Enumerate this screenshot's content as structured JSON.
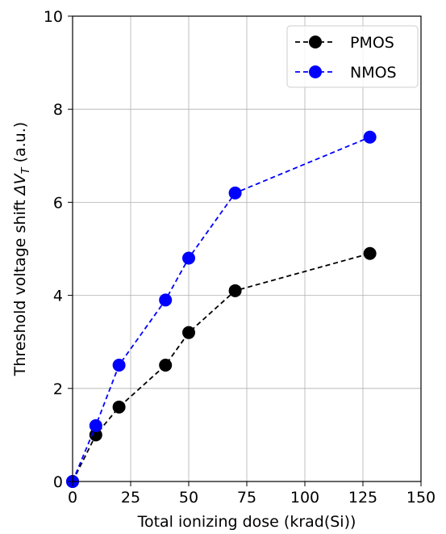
{
  "chart_data": {
    "type": "line",
    "xlabel": "Total ionizing dose (krad(Si))",
    "ylabel_prefix": "Threshold voltage shift ",
    "ylabel_symbol": "ΔV",
    "ylabel_subscript": "T",
    "ylabel_suffix": " (a.u.)",
    "xlim": [
      0,
      150
    ],
    "ylim": [
      0,
      10
    ],
    "xticks": [
      0,
      25,
      50,
      75,
      100,
      125,
      150
    ],
    "yticks": [
      0,
      2,
      4,
      6,
      8,
      10
    ],
    "grid": true,
    "legend_position": "top-right",
    "series": [
      {
        "name": "PMOS",
        "color": "#000000",
        "linestyle": "dashed",
        "marker": "circle",
        "x": [
          0,
          10,
          20,
          40,
          50,
          70,
          128
        ],
        "y": [
          0,
          1.0,
          1.6,
          2.5,
          3.2,
          4.1,
          4.9
        ]
      },
      {
        "name": "NMOS",
        "color": "#0000ff",
        "linestyle": "dashed",
        "marker": "circle",
        "x": [
          0,
          10,
          20,
          40,
          50,
          70,
          128
        ],
        "y": [
          0,
          1.2,
          2.5,
          3.9,
          4.8,
          6.2,
          7.4
        ]
      }
    ]
  }
}
